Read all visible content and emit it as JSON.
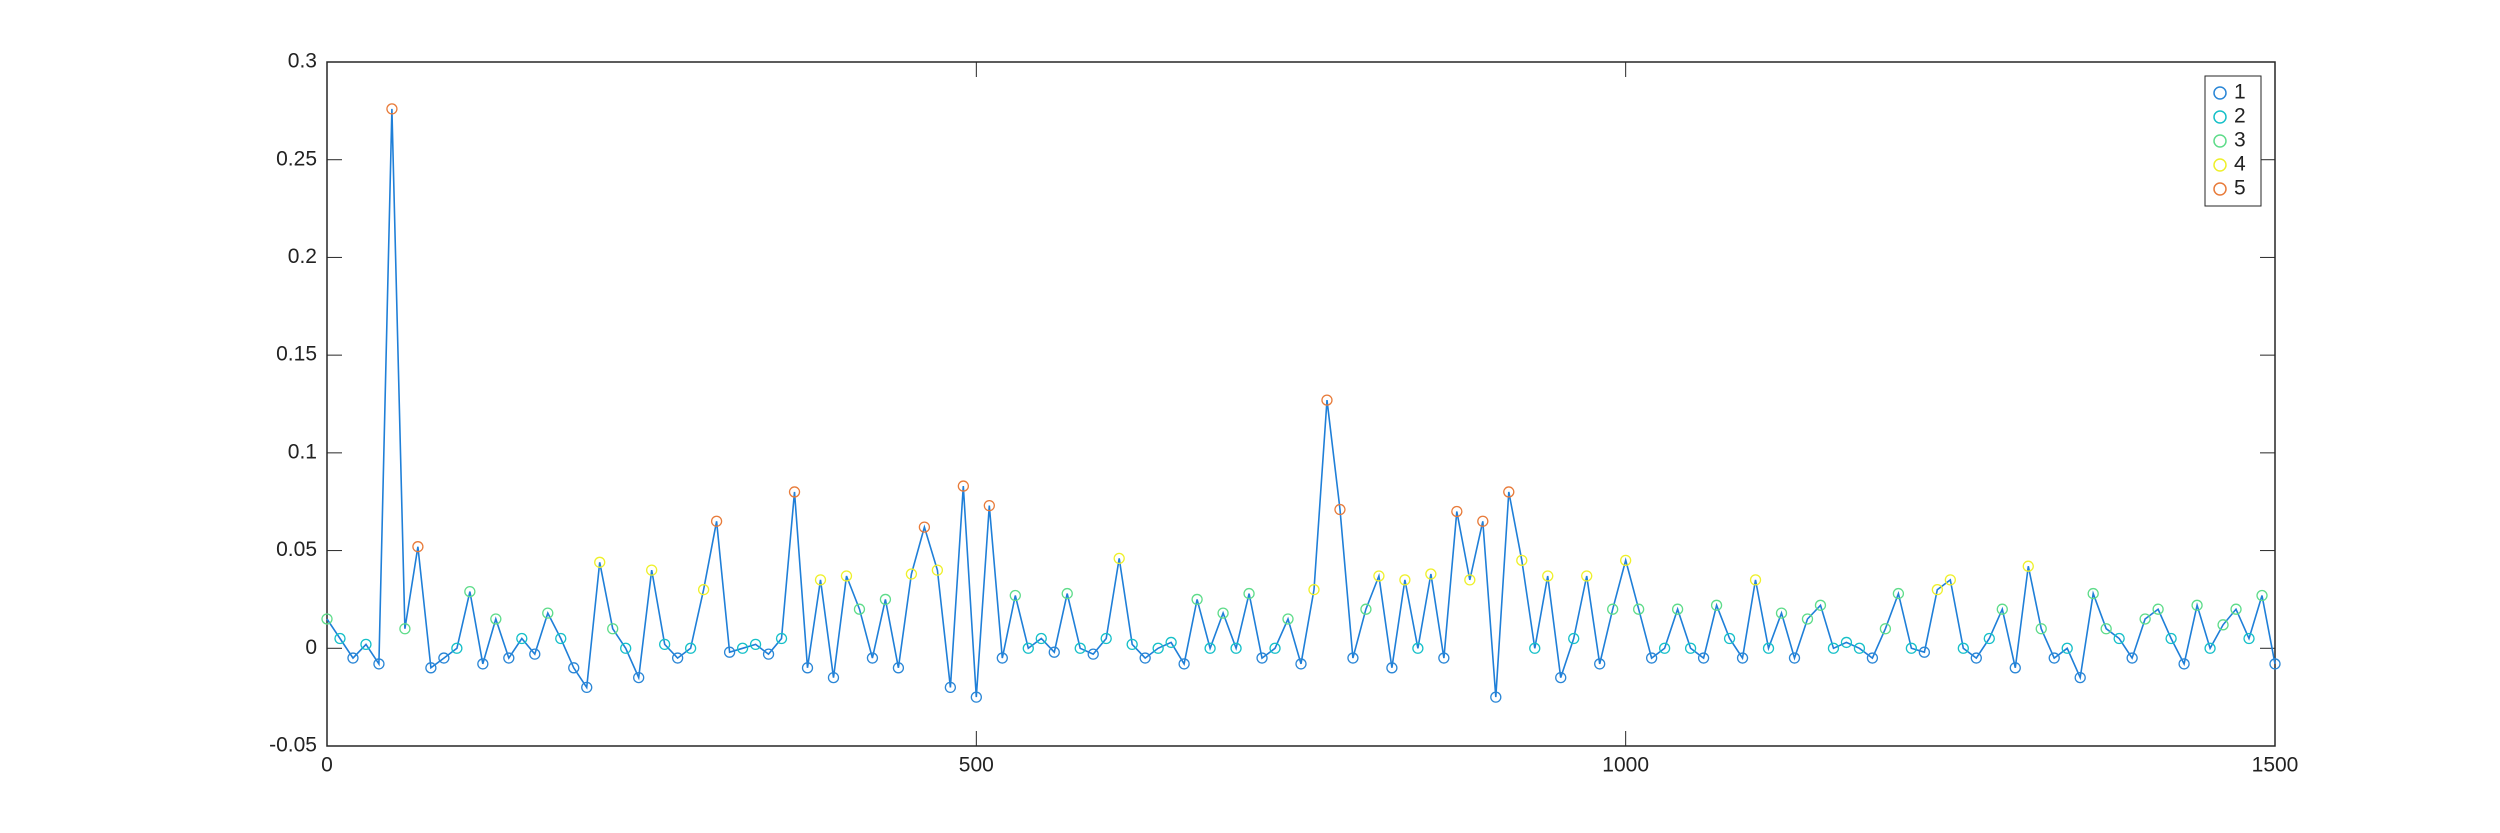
{
  "chart_data": {
    "type": "line-scatter",
    "line_color": "#1f7fd8",
    "series": [
      {
        "name": "1",
        "color": "#2a86d6"
      },
      {
        "name": "2",
        "color": "#16c0c8"
      },
      {
        "name": "3",
        "color": "#5edc8a"
      },
      {
        "name": "4",
        "color": "#eef02a"
      },
      {
        "name": "5",
        "color": "#e87b3a"
      }
    ],
    "x": [
      0,
      10,
      20,
      30,
      40,
      50,
      60,
      70,
      80,
      90,
      100,
      110,
      120,
      130,
      140,
      150,
      160,
      170,
      180,
      190,
      200,
      210,
      220,
      230,
      240,
      250,
      260,
      270,
      280,
      290,
      300,
      310,
      320,
      330,
      340,
      350,
      360,
      370,
      380,
      390,
      400,
      410,
      420,
      430,
      440,
      450,
      460,
      470,
      480,
      490,
      500,
      510,
      520,
      530,
      540,
      550,
      560,
      570,
      580,
      590,
      600,
      610,
      620,
      630,
      640,
      650,
      660,
      670,
      680,
      690,
      700,
      710,
      720,
      730,
      740,
      750,
      760,
      770,
      780,
      790,
      800,
      810,
      820,
      830,
      840,
      850,
      860,
      870,
      880,
      890,
      900,
      910,
      920,
      930,
      940,
      950,
      960,
      970,
      980,
      990,
      1000,
      1010,
      1020,
      1030,
      1040,
      1050,
      1060,
      1070,
      1080,
      1090,
      1100,
      1110,
      1120,
      1130,
      1140,
      1150,
      1160,
      1170,
      1180,
      1190,
      1200,
      1210,
      1220,
      1230,
      1240,
      1250,
      1260,
      1270,
      1280,
      1290,
      1300,
      1310,
      1320,
      1330,
      1340,
      1350,
      1360,
      1370,
      1380,
      1390,
      1400,
      1410,
      1420,
      1430,
      1440,
      1450,
      1460,
      1470,
      1480,
      1490,
      1500
    ],
    "values": [
      0.015,
      0.005,
      -0.005,
      0.002,
      -0.008,
      0.276,
      0.01,
      0.052,
      -0.01,
      -0.005,
      0,
      0.029,
      -0.008,
      0.015,
      -0.005,
      0.005,
      -0.003,
      0.018,
      0.005,
      -0.01,
      -0.02,
      0.044,
      0.01,
      0,
      -0.015,
      0.04,
      0.002,
      -0.005,
      0,
      0.03,
      0.065,
      -0.002,
      0,
      0.002,
      -0.003,
      0.005,
      0.08,
      -0.01,
      0.035,
      -0.015,
      0.037,
      0.02,
      -0.005,
      0.025,
      -0.01,
      0.038,
      0.062,
      0.04,
      -0.02,
      0.083,
      -0.025,
      0.073,
      -0.005,
      0.027,
      0,
      0.005,
      -0.002,
      0.028,
      0,
      -0.003,
      0.005,
      0.046,
      0.002,
      -0.005,
      0,
      0.003,
      -0.008,
      0.025,
      0,
      0.018,
      0,
      0.028,
      -0.005,
      0,
      0.015,
      -0.008,
      0.03,
      0.127,
      0.071,
      -0.005,
      0.02,
      0.037,
      -0.01,
      0.035,
      0,
      0.038,
      -0.005,
      0.07,
      0.035,
      0.065,
      -0.025,
      0.08,
      0.045,
      0,
      0.037,
      -0.015,
      0.005,
      0.037,
      -0.008,
      0.02,
      0.045,
      0.02,
      -0.005,
      0,
      0.02,
      0,
      -0.005,
      0.022,
      0.005,
      -0.005,
      0.035,
      0,
      0.018,
      -0.005,
      0.015,
      0.022,
      0,
      0.003,
      0,
      -0.005,
      0.01,
      0.028,
      0,
      -0.002,
      0.03,
      0.035,
      0,
      -0.005,
      0.005,
      0.02,
      -0.01,
      0.042,
      0.01,
      -0.005,
      0,
      -0.015,
      0.028,
      0.01,
      0.005,
      -0.005,
      0.015,
      0.02,
      0.005,
      -0.008,
      0.022,
      0,
      0.012,
      0.02,
      0.005,
      0.027,
      -0.008
    ],
    "cluster": [
      3,
      2,
      1,
      2,
      1,
      5,
      3,
      5,
      1,
      1,
      2,
      3,
      1,
      3,
      1,
      2,
      1,
      3,
      2,
      1,
      1,
      4,
      3,
      2,
      1,
      4,
      2,
      1,
      2,
      4,
      5,
      1,
      2,
      2,
      1,
      2,
      5,
      1,
      4,
      1,
      4,
      3,
      1,
      3,
      1,
      4,
      5,
      4,
      1,
      5,
      1,
      5,
      1,
      3,
      2,
      2,
      1,
      3,
      2,
      1,
      2,
      4,
      2,
      1,
      2,
      2,
      1,
      3,
      2,
      3,
      2,
      3,
      1,
      2,
      3,
      1,
      4,
      5,
      5,
      1,
      3,
      4,
      1,
      4,
      2,
      4,
      1,
      5,
      4,
      5,
      1,
      5,
      4,
      2,
      4,
      1,
      2,
      4,
      1,
      3,
      4,
      3,
      1,
      2,
      3,
      2,
      1,
      3,
      2,
      1,
      4,
      2,
      3,
      1,
      3,
      3,
      2,
      2,
      2,
      1,
      3,
      3,
      2,
      1,
      4,
      4,
      2,
      1,
      2,
      3,
      1,
      4,
      3,
      1,
      2,
      1,
      3,
      3,
      2,
      1,
      3,
      3,
      2,
      1,
      3,
      2,
      3,
      3,
      2,
      3,
      1
    ],
    "xlim": [
      0,
      1500
    ],
    "xticks": [
      0,
      500,
      1000,
      1500
    ],
    "ylim": [
      -0.05,
      0.3
    ],
    "yticks": [
      -0.05,
      0,
      0.05,
      0.1,
      0.15,
      0.2,
      0.25,
      0.3
    ],
    "legend": "top-right"
  }
}
